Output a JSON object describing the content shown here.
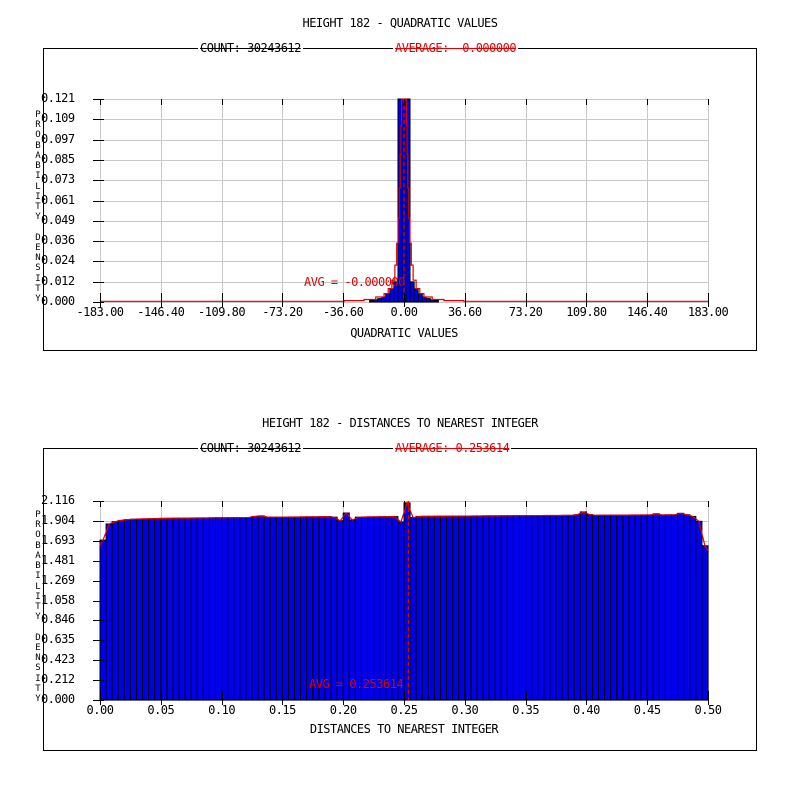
{
  "page": {
    "background": "#ffffff"
  },
  "colors": {
    "bar_fill": "#0000ee",
    "bar_edge": "#000000",
    "curve_red": "#e00000",
    "grid": "#c8c8c8",
    "axis": "#000000",
    "text": "#000000"
  },
  "chart_data": [
    {
      "type": "bar",
      "title": "HEIGHT 182 - QUADRATIC VALUES",
      "count_label": "COUNT: 30243612",
      "average_label": "AVERAGE: -0.000000",
      "avg_annotation": "AVG = -0.000000",
      "xlabel": "QUADRATIC VALUES",
      "ylabel": "PROBABILITY DENSITY",
      "x_tick_labels": [
        "-183.00",
        "-146.40",
        "-109.80",
        "-73.20",
        "-36.60",
        "0.00",
        "36.60",
        "73.20",
        "109.80",
        "146.40",
        "183.00"
      ],
      "y_tick_labels": [
        "0.121",
        "0.109",
        "0.097",
        "0.085",
        "0.073",
        "0.061",
        "0.049",
        "0.036",
        "0.024",
        "0.012",
        "0.000"
      ],
      "xlim": [
        -183,
        183
      ],
      "ylim": [
        0,
        0.121
      ],
      "average_value": 0.0,
      "grid": true,
      "legend": "none",
      "bin_width": 2.44,
      "bars": [
        [
          -19.5,
          0.0009
        ],
        [
          -17.1,
          0.0013
        ],
        [
          -14.6,
          0.002
        ],
        [
          -12.2,
          0.003
        ],
        [
          -9.8,
          0.0048
        ],
        [
          -7.3,
          0.0078
        ],
        [
          -4.9,
          0.012
        ],
        [
          -2.4,
          0.1225
        ],
        [
          0,
          0.1225
        ],
        [
          2.4,
          0.1225
        ],
        [
          4.9,
          0.012
        ],
        [
          7.3,
          0.0078
        ],
        [
          9.8,
          0.0048
        ],
        [
          12.2,
          0.003
        ],
        [
          14.6,
          0.002
        ],
        [
          17.1,
          0.0013
        ],
        [
          19.5,
          0.0009
        ]
      ],
      "fit_curve": [
        [
          -183,
          0.0004
        ],
        [
          -36,
          0.0004
        ],
        [
          -36,
          0.0008
        ],
        [
          -24,
          0.0008
        ],
        [
          -24,
          0.0015
        ],
        [
          -17,
          0.0015
        ],
        [
          -17,
          0.003
        ],
        [
          -12,
          0.003
        ],
        [
          -12,
          0.005
        ],
        [
          -9.5,
          0.005
        ],
        [
          -9.5,
          0.008
        ],
        [
          -7.3,
          0.008
        ],
        [
          -7.3,
          0.013
        ],
        [
          -5.5,
          0.013
        ],
        [
          -5.5,
          0.022
        ],
        [
          -4.4,
          0.022
        ],
        [
          -4.4,
          0.035
        ],
        [
          -3.6,
          0.035
        ],
        [
          -3.6,
          0.05
        ],
        [
          -2.9,
          0.05
        ],
        [
          -2.9,
          0.068
        ],
        [
          -2.3,
          0.068
        ],
        [
          -2.3,
          0.088
        ],
        [
          -1.8,
          0.088
        ],
        [
          -1.8,
          0.105
        ],
        [
          -1.4,
          0.105
        ],
        [
          -1.4,
          0.1225
        ],
        [
          1.4,
          0.1225
        ],
        [
          1.4,
          0.105
        ],
        [
          1.8,
          0.105
        ],
        [
          1.8,
          0.088
        ],
        [
          2.3,
          0.088
        ],
        [
          2.3,
          0.068
        ],
        [
          2.9,
          0.068
        ],
        [
          2.9,
          0.05
        ],
        [
          3.6,
          0.05
        ],
        [
          3.6,
          0.035
        ],
        [
          4.4,
          0.035
        ],
        [
          4.4,
          0.022
        ],
        [
          5.5,
          0.022
        ],
        [
          5.5,
          0.013
        ],
        [
          7.3,
          0.013
        ],
        [
          7.3,
          0.008
        ],
        [
          9.5,
          0.008
        ],
        [
          9.5,
          0.005
        ],
        [
          12,
          0.005
        ],
        [
          12,
          0.003
        ],
        [
          17,
          0.003
        ],
        [
          17,
          0.0015
        ],
        [
          24,
          0.0015
        ],
        [
          24,
          0.0008
        ],
        [
          36,
          0.0008
        ],
        [
          36,
          0.0004
        ],
        [
          183,
          0.0004
        ]
      ]
    },
    {
      "type": "bar",
      "title": "HEIGHT 182 - DISTANCES TO NEAREST INTEGER",
      "count_label": "COUNT: 30243612",
      "average_label": "AVERAGE: 0.253614",
      "avg_annotation": "AVG = 0.253614",
      "xlabel": "DISTANCES TO NEAREST INTEGER",
      "ylabel": "PROBABILITY DENSITY",
      "x_tick_labels": [
        "0.00",
        "0.05",
        "0.10",
        "0.15",
        "0.20",
        "0.25",
        "0.30",
        "0.35",
        "0.40",
        "0.45",
        "0.50"
      ],
      "y_tick_labels": [
        "2.116",
        "1.904",
        "1.693",
        "1.481",
        "1.269",
        "1.058",
        "0.846",
        "0.635",
        "0.423",
        "0.212",
        "0.000"
      ],
      "xlim": [
        0,
        0.5
      ],
      "ylim": [
        0,
        2.116
      ],
      "average_value": 0.253614,
      "grid": true,
      "legend": "none",
      "bin_width": 0.005,
      "values": [
        1.7,
        1.872,
        1.896,
        1.91,
        1.918,
        1.922,
        1.925,
        1.926,
        1.928,
        1.93,
        1.931,
        1.932,
        1.933,
        1.934,
        1.934,
        1.935,
        1.936,
        1.936,
        1.937,
        1.938,
        1.938,
        1.939,
        1.94,
        1.94,
        1.941,
        1.952,
        1.958,
        1.946,
        1.944,
        1.944,
        1.945,
        1.946,
        1.946,
        1.947,
        1.948,
        1.948,
        1.949,
        1.95,
        1.944,
        1.906,
        1.988,
        1.914,
        1.944,
        1.946,
        1.947,
        1.948,
        1.949,
        1.95,
        1.95,
        1.892,
        2.096,
        1.94,
        1.952,
        1.953,
        1.953,
        1.954,
        1.954,
        1.955,
        1.955,
        1.956,
        1.956,
        1.957,
        1.957,
        1.958,
        1.958,
        1.958,
        1.959,
        1.959,
        1.96,
        1.96,
        1.96,
        1.961,
        1.961,
        1.962,
        1.962,
        1.962,
        1.963,
        1.963,
        1.97,
        2.0,
        1.972,
        1.964,
        1.965,
        1.965,
        1.966,
        1.966,
        1.966,
        1.967,
        1.967,
        1.968,
        1.968,
        1.98,
        1.968,
        1.969,
        1.969,
        1.985,
        1.97,
        1.952,
        1.9,
        1.64
      ]
    }
  ]
}
